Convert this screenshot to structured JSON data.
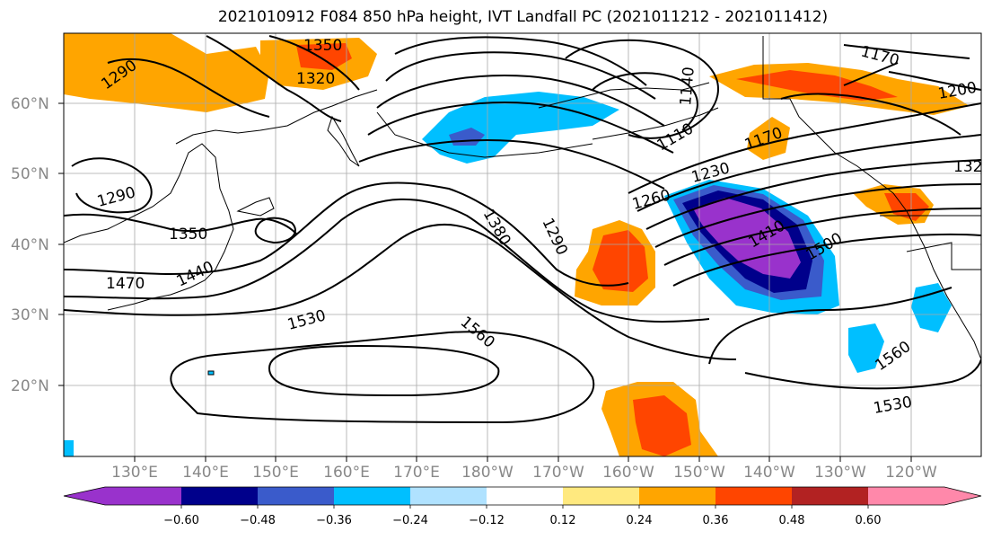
{
  "title": "2021010912 F084 850 hPa height, IVT Landfall PC (2021011212 - 2021011412)",
  "lat_labels": [
    "60°N",
    "50°N",
    "40°N",
    "30°N",
    "20°N"
  ],
  "lon_labels": [
    "130°E",
    "140°E",
    "150°E",
    "160°E",
    "170°E",
    "180°W",
    "170°W",
    "160°W",
    "150°W",
    "140°W",
    "130°W",
    "120°W"
  ],
  "colorbar": {
    "colors": [
      "#9932CC",
      "#00008B",
      "#3A5BCB",
      "#00BFFF",
      "#B0E2FF",
      "#FFFFFF",
      "#FFFFFF",
      "#FFE97F",
      "#FFA500",
      "#FF4500",
      "#B22222",
      "#FF88AA"
    ],
    "ticks": [
      "−0.60",
      "−0.48",
      "−0.36",
      "−0.24",
      "−0.12",
      "0.12",
      "0.24",
      "0.36",
      "0.48",
      "0.60"
    ]
  },
  "contour_labels": [
    "1350",
    "1320",
    "1290",
    "1290",
    "1350",
    "1470",
    "1440",
    "1380",
    "1290",
    "1260",
    "1230",
    "1110",
    "1140",
    "1170",
    "1170",
    "1200",
    "132",
    "1410",
    "1500",
    "1530",
    "1560",
    "1560",
    "1530"
  ]
}
